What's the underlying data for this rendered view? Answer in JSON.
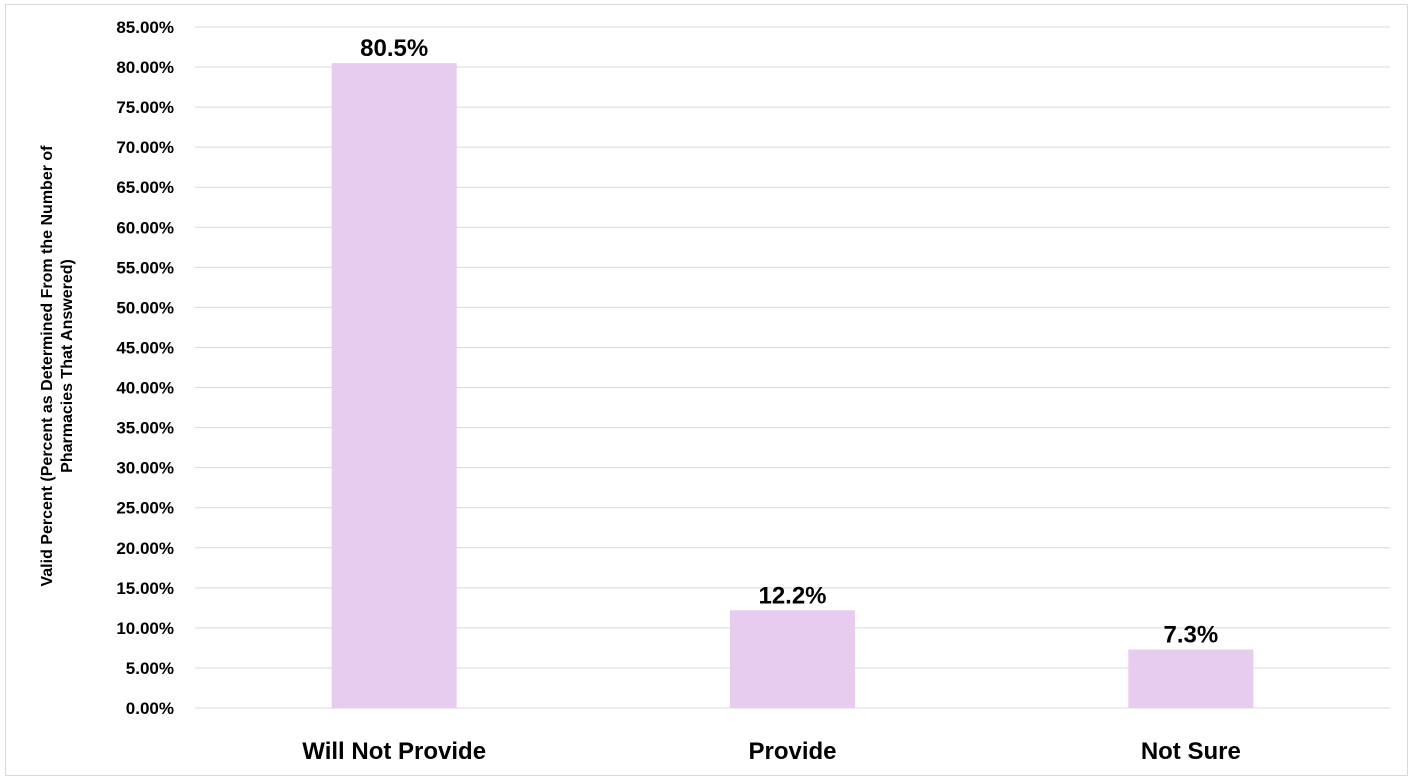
{
  "chart_data": {
    "type": "bar",
    "categories": [
      "Will Not Provide",
      "Provide",
      "Not Sure"
    ],
    "values": [
      80.5,
      12.2,
      7.3
    ],
    "data_labels": [
      "80.5%",
      "12.2%",
      "7.3%"
    ],
    "title": "",
    "xlabel": "",
    "ylabel_lines": [
      "Valid Percent (Percent as Determined From the Number of",
      "Pharmacies That Answered)"
    ],
    "ylim": [
      0,
      85
    ],
    "yticks": [
      0,
      5,
      10,
      15,
      20,
      25,
      30,
      35,
      40,
      45,
      50,
      55,
      60,
      65,
      70,
      75,
      80,
      85
    ],
    "ytick_labels": [
      "0.00%",
      "5.00%",
      "10.00%",
      "15.00%",
      "20.00%",
      "25.00%",
      "30.00%",
      "35.00%",
      "40.00%",
      "45.00%",
      "50.00%",
      "55.00%",
      "60.00%",
      "65.00%",
      "70.00%",
      "75.00%",
      "80.00%",
      "85.00%"
    ],
    "grid": true,
    "bar_color": "#e8ccef",
    "grid_color": "#d9d9d9"
  }
}
